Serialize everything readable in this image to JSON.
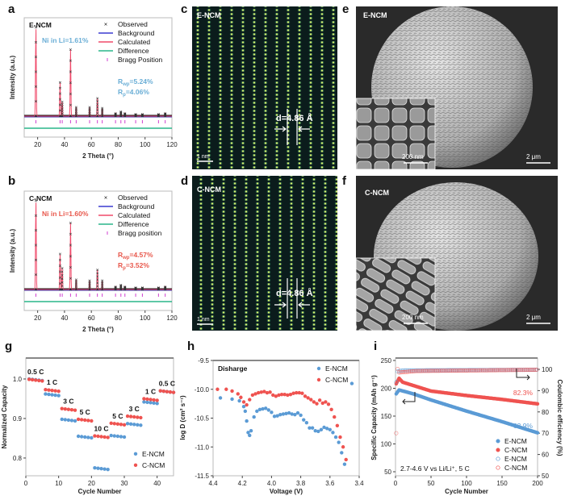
{
  "colors": {
    "e_ncm": "#5b9bd5",
    "c_ncm": "#ef5350",
    "background_line": "#3a3ad0",
    "calculated": "#f04a6a",
    "difference": "#2ab58a",
    "bragg": "#d040d0",
    "e_text": "#6aaed6",
    "c_text": "#e8584c"
  },
  "panels": {
    "a": "a",
    "b": "b",
    "c": "c",
    "d": "d",
    "e": "e",
    "f": "f",
    "g": "g",
    "h": "h",
    "i": "i"
  },
  "chart_data": [
    {
      "panel": "a",
      "type": "line",
      "sample": "E-NCM",
      "xlabel": "2 Theta (°)",
      "ylabel": "Intensity (a.u.)",
      "xlim": [
        10,
        120
      ],
      "xticks": [
        "20",
        "40",
        "60",
        "80",
        "100",
        "120"
      ],
      "legend": [
        "Observed",
        "Background",
        "Calculated",
        "Difference",
        "Bragg Position"
      ],
      "annotation": "Ni in Li=1.61%",
      "rwp": {
        "main": "R",
        "sub": "wp",
        "value": "=5.24%"
      },
      "rp": {
        "main": "R",
        "sub": "p",
        "value": "=4.06%"
      },
      "peaks": [
        [
          18.7,
          1.0
        ],
        [
          36.7,
          0.38
        ],
        [
          38.3,
          0.16
        ],
        [
          44.5,
          0.75
        ],
        [
          48.7,
          0.1
        ],
        [
          58.7,
          0.1
        ],
        [
          64.5,
          0.2
        ],
        [
          68.1,
          0.09
        ],
        [
          78,
          0.03
        ],
        [
          82,
          0.05
        ],
        [
          85,
          0.03
        ],
        [
          93,
          0.02
        ],
        [
          98,
          0.02
        ],
        [
          110,
          0.02
        ],
        [
          115,
          0.03
        ]
      ]
    },
    {
      "panel": "b",
      "type": "line",
      "sample": "C-NCM",
      "xlabel": "2 Theta (°)",
      "ylabel": "Intensity (a.u.)",
      "xlim": [
        10,
        120
      ],
      "xticks": [
        "20",
        "40",
        "60",
        "80",
        "100",
        "120"
      ],
      "legend": [
        "Observed",
        "Background",
        "Calculated",
        "Difference",
        "Bragg position"
      ],
      "annotation": "Ni in Li=1.60%",
      "rwp": {
        "main": "R",
        "sub": "wp",
        "value": "=4.57%"
      },
      "rp": {
        "main": "R",
        "sub": "p",
        "value": "=3.52%"
      },
      "peaks": [
        [
          18.7,
          1.0
        ],
        [
          36.7,
          0.4
        ],
        [
          38.3,
          0.24
        ],
        [
          44.5,
          0.75
        ],
        [
          48.7,
          0.11
        ],
        [
          58.7,
          0.1
        ],
        [
          64.5,
          0.22
        ],
        [
          68.1,
          0.1
        ],
        [
          78,
          0.03
        ],
        [
          82,
          0.05
        ],
        [
          85,
          0.03
        ],
        [
          93,
          0.02
        ],
        [
          98,
          0.02
        ],
        [
          110,
          0.02
        ],
        [
          115,
          0.03
        ]
      ]
    },
    {
      "panel": "g",
      "type": "scatter",
      "xlabel": "Cycle Number",
      "ylabel": "Normalized Capacity",
      "xlim": [
        0,
        45
      ],
      "ylim": [
        0.755,
        1.053
      ],
      "xticks": [
        "0",
        "10",
        "20",
        "30",
        "40"
      ],
      "yticks": [
        "0.8",
        "0.9",
        "1.0"
      ],
      "rate_labels": [
        "0.5 C",
        "1 C",
        "3 C",
        "5 C",
        "10 C",
        "5 C",
        "3 C",
        "1 C",
        "0.5 C"
      ],
      "legend": "bottom-right",
      "series": [
        {
          "name": "E-NCM",
          "block_values": [
            1.0,
            0.962,
            0.898,
            0.855,
            0.775,
            0.857,
            0.887,
            0.942,
            0.97
          ]
        },
        {
          "name": "C-NCM",
          "block_values": [
            0.999,
            0.973,
            0.925,
            0.898,
            0.856,
            0.888,
            0.906,
            0.95,
            0.97
          ]
        }
      ]
    },
    {
      "panel": "h",
      "type": "scatter",
      "title": "Disharge",
      "xlabel": "Voltage (V)",
      "ylabel": "log D (cm² s⁻¹)",
      "xlim": [
        4.4,
        3.4
      ],
      "ylim": [
        -11.5,
        -9.5
      ],
      "xticks": [
        "4.4",
        "4.2",
        "4.0",
        "3.8",
        "3.6",
        "3.4"
      ],
      "yticks": [
        "-9.5",
        "-10.0",
        "-10.5",
        "-11.0",
        "-11.5"
      ],
      "legend": "top-right",
      "series": [
        {
          "name": "E-NCM",
          "points": [
            [
              4.35,
              -10.15
            ],
            [
              4.27,
              -10.17
            ],
            [
              4.22,
              -10.2
            ],
            [
              4.19,
              -10.3
            ],
            [
              4.18,
              -10.38
            ],
            [
              4.17,
              -10.55
            ],
            [
              4.16,
              -10.75
            ],
            [
              4.15,
              -10.8
            ],
            [
              4.14,
              -10.72
            ],
            [
              4.12,
              -10.48
            ],
            [
              4.1,
              -10.38
            ],
            [
              4.08,
              -10.35
            ],
            [
              4.06,
              -10.34
            ],
            [
              4.04,
              -10.33
            ],
            [
              4.02,
              -10.36
            ],
            [
              4.0,
              -10.4
            ],
            [
              3.98,
              -10.47
            ],
            [
              3.96,
              -10.46
            ],
            [
              3.94,
              -10.44
            ],
            [
              3.92,
              -10.43
            ],
            [
              3.9,
              -10.42
            ],
            [
              3.88,
              -10.41
            ],
            [
              3.86,
              -10.43
            ],
            [
              3.84,
              -10.44
            ],
            [
              3.82,
              -10.41
            ],
            [
              3.8,
              -10.45
            ],
            [
              3.78,
              -10.53
            ],
            [
              3.76,
              -10.58
            ],
            [
              3.74,
              -10.67
            ],
            [
              3.72,
              -10.67
            ],
            [
              3.7,
              -10.72
            ],
            [
              3.68,
              -10.73
            ],
            [
              3.66,
              -10.7
            ],
            [
              3.64,
              -10.66
            ],
            [
              3.62,
              -10.68
            ],
            [
              3.6,
              -10.7
            ],
            [
              3.58,
              -10.75
            ],
            [
              3.56,
              -10.83
            ],
            [
              3.54,
              -10.92
            ],
            [
              3.52,
              -11.1
            ],
            [
              3.5,
              -11.3
            ],
            [
              3.45,
              -9.9
            ]
          ]
        },
        {
          "name": "C-NCM",
          "points": [
            [
              4.37,
              -10.0
            ],
            [
              4.31,
              -10.0
            ],
            [
              4.27,
              -10.03
            ],
            [
              4.23,
              -10.08
            ],
            [
              4.21,
              -10.14
            ],
            [
              4.19,
              -10.22
            ],
            [
              4.17,
              -10.27
            ],
            [
              4.15,
              -10.18
            ],
            [
              4.13,
              -10.1
            ],
            [
              4.11,
              -10.08
            ],
            [
              4.09,
              -10.06
            ],
            [
              4.07,
              -10.05
            ],
            [
              4.05,
              -10.04
            ],
            [
              4.03,
              -10.06
            ],
            [
              4.01,
              -10.05
            ],
            [
              3.99,
              -10.1
            ],
            [
              3.97,
              -10.12
            ],
            [
              3.95,
              -10.1
            ],
            [
              3.93,
              -10.09
            ],
            [
              3.91,
              -10.09
            ],
            [
              3.89,
              -10.1
            ],
            [
              3.87,
              -10.09
            ],
            [
              3.85,
              -10.07
            ],
            [
              3.83,
              -10.06
            ],
            [
              3.81,
              -10.06
            ],
            [
              3.79,
              -10.07
            ],
            [
              3.77,
              -10.12
            ],
            [
              3.75,
              -10.15
            ],
            [
              3.73,
              -10.18
            ],
            [
              3.71,
              -10.22
            ],
            [
              3.69,
              -10.25
            ],
            [
              3.67,
              -10.19
            ],
            [
              3.65,
              -10.24
            ],
            [
              3.63,
              -10.22
            ],
            [
              3.61,
              -10.26
            ],
            [
              3.59,
              -10.35
            ],
            [
              3.57,
              -10.48
            ],
            [
              3.55,
              -10.63
            ],
            [
              3.53,
              -10.83
            ],
            [
              3.51,
              -11.0
            ],
            [
              3.49,
              -11.22
            ]
          ]
        }
      ]
    },
    {
      "panel": "i",
      "type": "scatter",
      "xlabel": "Cycle Number",
      "ylabel": "Specific Capacity (mAh g⁻¹)",
      "y2label": "Coulombic efficiency (%)",
      "xlim": [
        0,
        200
      ],
      "ylim": [
        50,
        250
      ],
      "y2lim": [
        50,
        100
      ],
      "xticks": [
        "0",
        "50",
        "100",
        "150",
        "200"
      ],
      "yticks": [
        "50",
        "100",
        "150",
        "200",
        "250"
      ],
      "y2ticks": [
        "50",
        "60",
        "70",
        "80",
        "90",
        "100"
      ],
      "condition": "2.7-4.6 V vs Li/Li⁺, 5 C",
      "retention_labels": {
        "c_ncm": "82.3%",
        "e_ncm": "63.9%"
      },
      "legend": "bottom-right",
      "series": [
        {
          "name": "E-NCM",
          "axis": "capacity",
          "key_points": [
            [
              1,
              190
            ],
            [
              5,
              197
            ],
            [
              25,
              190
            ],
            [
              50,
              179
            ],
            [
              100,
              159
            ],
            [
              150,
              140
            ],
            [
              200,
              120
            ]
          ]
        },
        {
          "name": "C-NCM",
          "axis": "capacity",
          "key_points": [
            [
              1,
              208
            ],
            [
              5,
              218
            ],
            [
              10,
              211
            ],
            [
              25,
              205
            ],
            [
              50,
              195
            ],
            [
              100,
              187
            ],
            [
              150,
              180
            ],
            [
              200,
              172
            ]
          ]
        },
        {
          "name": "E-NCM",
          "axis": "efficiency",
          "key_points": [
            [
              1,
              94
            ],
            [
              3,
              99
            ],
            [
              10,
              99.5
            ],
            [
              200,
              99.8
            ]
          ]
        },
        {
          "name": "C-NCM",
          "axis": "efficiency",
          "key_points": [
            [
              1,
              70
            ],
            [
              2,
              101
            ],
            [
              5,
              98.5
            ],
            [
              30,
              99.2
            ],
            [
              200,
              99.8
            ]
          ]
        }
      ]
    }
  ],
  "micrographs": {
    "c": {
      "sample": "E-NCM",
      "d_spacing": "d=4.86 Å",
      "scale": "1 nm"
    },
    "d": {
      "sample": "C-NCM",
      "d_spacing": "d=4.86 Å",
      "scale": "1 nm"
    },
    "e": {
      "sample": "E-NCM",
      "inset_scale": "200 nm",
      "scale": "2 μm"
    },
    "f": {
      "sample": "C-NCM",
      "inset_scale": "200 nm",
      "scale": "2 μm"
    }
  }
}
